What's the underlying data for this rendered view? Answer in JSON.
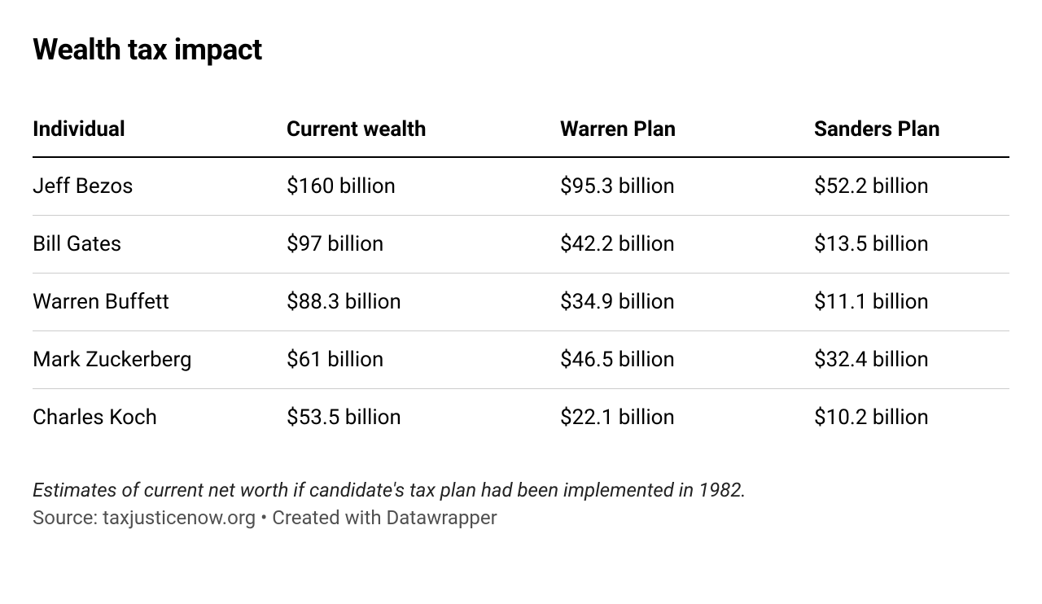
{
  "title": "Wealth tax impact",
  "table": {
    "type": "table",
    "columns": [
      "Individual",
      "Current wealth",
      "Warren Plan",
      "Sanders Plan"
    ],
    "column_widths_pct": [
      26,
      28,
      26,
      20
    ],
    "column_alignment": [
      "left",
      "left",
      "left",
      "left"
    ],
    "rows": [
      [
        "Jeff Bezos",
        "$160 billion",
        "$95.3 billion",
        "$52.2 billion"
      ],
      [
        "Bill Gates",
        "$97 billion",
        "$42.2 billion",
        "$13.5 billion"
      ],
      [
        "Warren Buffett",
        "$88.3 billion",
        "$34.9 billion",
        "$11.1 billion"
      ],
      [
        "Mark Zuckerberg",
        "$61 billion",
        "$46.5 billion",
        "$32.4 billion"
      ],
      [
        "Charles Koch",
        "$53.5 billion",
        "$22.1 billion",
        "$10.2 billion"
      ]
    ],
    "header_fontsize": 26,
    "header_fontweight": 700,
    "cell_fontsize": 26,
    "cell_fontweight": 400,
    "header_border_color": "#000000",
    "row_border_color": "#cccccc",
    "background_color": "#ffffff",
    "text_color": "#000000"
  },
  "footnote": "Estimates of current net worth if candidate's tax plan had been implemented in 1982.",
  "source": "Source: taxjusticenow.org • Created with Datawrapper",
  "title_fontsize": 36,
  "title_fontweight": 700,
  "footnote_fontsize": 24,
  "footnote_color": "#222222",
  "source_fontsize": 24,
  "source_color": "#505050"
}
